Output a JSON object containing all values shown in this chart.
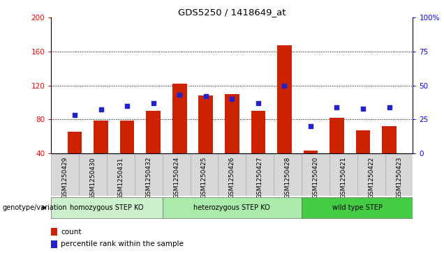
{
  "title": "GDS5250 / 1418649_at",
  "samples": [
    "GSM1250429",
    "GSM1250430",
    "GSM1250431",
    "GSM1250432",
    "GSM1250424",
    "GSM1250425",
    "GSM1250426",
    "GSM1250427",
    "GSM1250428",
    "GSM1250420",
    "GSM1250421",
    "GSM1250422",
    "GSM1250423"
  ],
  "counts": [
    65,
    78,
    78,
    90,
    122,
    108,
    110,
    90,
    167,
    43,
    82,
    67,
    72
  ],
  "percentiles": [
    28,
    32,
    35,
    37,
    43,
    42,
    40,
    37,
    50,
    20,
    34,
    33,
    34
  ],
  "groups": [
    {
      "label": "homozygous STEP KO",
      "start": 0,
      "end": 4
    },
    {
      "label": "heterozygous STEP KO",
      "start": 4,
      "end": 9
    },
    {
      "label": "wild type STEP",
      "start": 9,
      "end": 13
    }
  ],
  "group_colors": [
    "#ccf0cc",
    "#aaeaaa",
    "#44cc44"
  ],
  "ylim_left": [
    40,
    200
  ],
  "ylim_right": [
    0,
    100
  ],
  "yticks_left": [
    40,
    80,
    120,
    160,
    200
  ],
  "yticks_right": [
    0,
    25,
    50,
    75,
    100
  ],
  "bar_color": "#cc2200",
  "dot_color": "#2222cc",
  "legend_count_label": "count",
  "legend_pct_label": "percentile rank within the sample",
  "xlabel_genotype": "genotype/variation"
}
